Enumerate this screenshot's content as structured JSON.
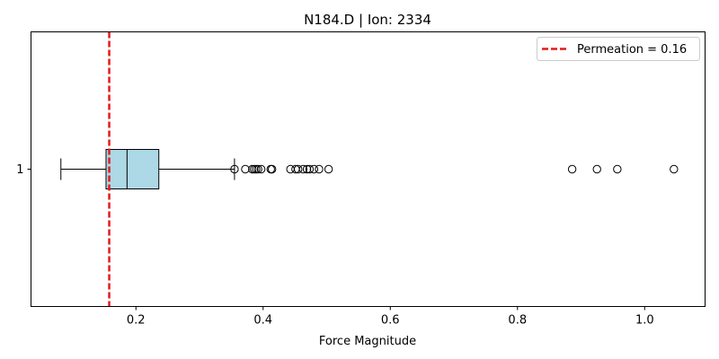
{
  "chart_data": {
    "type": "boxplot",
    "title": "N184.D | Ion: 2334",
    "xlabel": "Force Magnitude",
    "ylabel": "",
    "xlim": [
      0.035,
      1.095
    ],
    "xticks": [
      0.2,
      0.4,
      0.6,
      0.8,
      1.0
    ],
    "xtick_labels": [
      "0.2",
      "0.4",
      "0.6",
      "0.8",
      "1.0"
    ],
    "yticks": [
      "1"
    ],
    "grid": false,
    "legend_position": "top-right",
    "box": {
      "category": "1",
      "whisker_low": 0.082,
      "q1": 0.153,
      "median": 0.186,
      "q3": 0.236,
      "whisker_high": 0.355,
      "fill_color": "#add8e6",
      "outliers": [
        0.355,
        0.372,
        0.383,
        0.386,
        0.389,
        0.392,
        0.397,
        0.412,
        0.414,
        0.443,
        0.451,
        0.455,
        0.463,
        0.469,
        0.473,
        0.48,
        0.488,
        0.503,
        0.886,
        0.925,
        0.957,
        1.046
      ]
    },
    "reference_line": {
      "value": 0.158,
      "label": "Permeation = 0.16",
      "color": "#e41a1c",
      "style": "dashed"
    }
  }
}
